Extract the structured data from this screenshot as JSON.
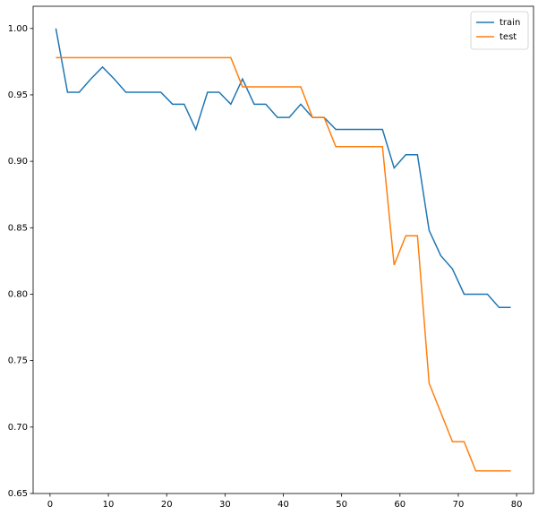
{
  "chart_data": {
    "type": "line",
    "x": [
      1,
      3,
      5,
      7,
      9,
      11,
      13,
      15,
      17,
      19,
      21,
      23,
      25,
      27,
      29,
      31,
      33,
      35,
      37,
      39,
      41,
      43,
      45,
      47,
      49,
      51,
      53,
      55,
      57,
      59,
      61,
      63,
      65,
      67,
      69,
      71,
      73,
      75,
      77,
      79
    ],
    "series": [
      {
        "name": "train",
        "color": "#1f77b4",
        "values": [
          1.0,
          0.952,
          0.952,
          0.962,
          0.971,
          0.962,
          0.952,
          0.952,
          0.952,
          0.952,
          0.943,
          0.943,
          0.924,
          0.952,
          0.952,
          0.943,
          0.962,
          0.943,
          0.943,
          0.933,
          0.933,
          0.943,
          0.933,
          0.933,
          0.924,
          0.924,
          0.924,
          0.924,
          0.924,
          0.895,
          0.905,
          0.905,
          0.848,
          0.829,
          0.819,
          0.8,
          0.8,
          0.8,
          0.79,
          0.79
        ]
      },
      {
        "name": "test",
        "color": "#ff7f0e",
        "values": [
          0.978,
          0.978,
          0.978,
          0.978,
          0.978,
          0.978,
          0.978,
          0.978,
          0.978,
          0.978,
          0.978,
          0.978,
          0.978,
          0.978,
          0.978,
          0.978,
          0.956,
          0.956,
          0.956,
          0.956,
          0.956,
          0.956,
          0.933,
          0.933,
          0.911,
          0.911,
          0.911,
          0.911,
          0.911,
          0.822,
          0.844,
          0.844,
          0.733,
          0.711,
          0.689,
          0.689,
          0.667,
          0.667,
          0.667,
          0.667
        ]
      }
    ],
    "xlim": [
      -2.9,
      82.9
    ],
    "ylim": [
      0.65,
      1.0167
    ],
    "xticks": [
      0,
      10,
      20,
      30,
      40,
      50,
      60,
      70,
      80
    ],
    "yticks": [
      0.65,
      {
        "value": 0.7,
        "label": "0.70"
      },
      0.75,
      {
        "value": 0.8,
        "label": "0.80"
      },
      0.85,
      {
        "value": 0.9,
        "label": "0.90"
      },
      0.95,
      {
        "value": 1.0,
        "label": "1.00"
      }
    ],
    "legend": "upper right"
  }
}
